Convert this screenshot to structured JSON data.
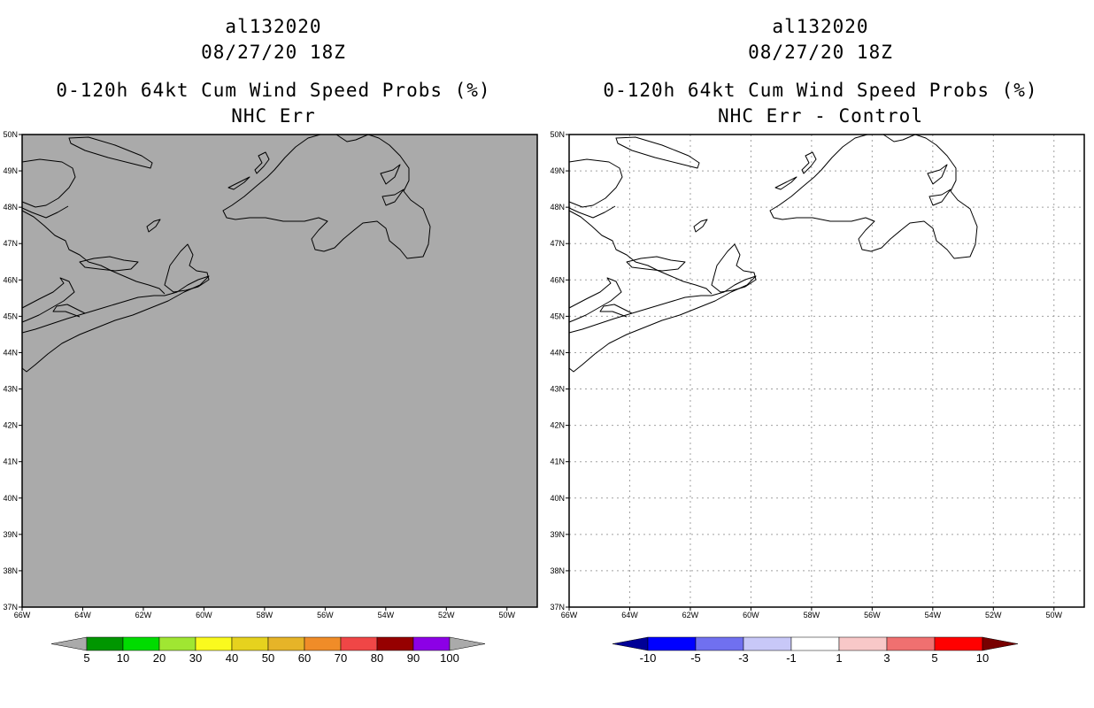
{
  "panels": [
    {
      "id": "left",
      "title_line1": "al132020",
      "title_line2": "08/27/20 18Z",
      "title_line3": "0-120h 64kt Cum Wind Speed Probs (%)",
      "title_line4": "NHC Err",
      "map_fill": "#aaaaaa",
      "gridlines": false,
      "colorbar": {
        "min_color": "#aaaaaa",
        "max_color": "#aaaaaa",
        "colors": [
          "#009600",
          "#00dc00",
          "#a0e632",
          "#fafa1e",
          "#e6d21e",
          "#e6b428",
          "#f08c28",
          "#f04646",
          "#960000",
          "#8c00e6"
        ],
        "labels": [
          "5",
          "10",
          "20",
          "30",
          "40",
          "50",
          "60",
          "70",
          "80",
          "90",
          "100"
        ]
      }
    },
    {
      "id": "right",
      "title_line1": "al132020",
      "title_line2": "08/27/20 18Z",
      "title_line3": "0-120h 64kt Cum Wind Speed Probs (%)",
      "title_line4": "NHC Err - Control",
      "map_fill": "#ffffff",
      "gridlines": true,
      "colorbar": {
        "min_color": "#000096",
        "max_color": "#780000",
        "colors": [
          "#0000ff",
          "#7070f0",
          "#c8c8f8",
          "#ffffff",
          "#f8c8c8",
          "#f07070",
          "#ff0000"
        ],
        "labels": [
          "-10",
          "-5",
          "-3",
          "-1",
          "1",
          "3",
          "5",
          "10"
        ]
      }
    }
  ],
  "axes": {
    "lon_labels": [
      "66W",
      "64W",
      "62W",
      "60W",
      "58W",
      "56W",
      "54W",
      "52W",
      "50W"
    ],
    "lat_labels": [
      "37N",
      "38N",
      "39N",
      "40N",
      "41N",
      "42N",
      "43N",
      "44N",
      "45N",
      "46N",
      "47N",
      "48N",
      "49N",
      "50N"
    ],
    "lon_range": [
      -66,
      -49
    ],
    "lat_range": [
      37,
      50
    ]
  }
}
